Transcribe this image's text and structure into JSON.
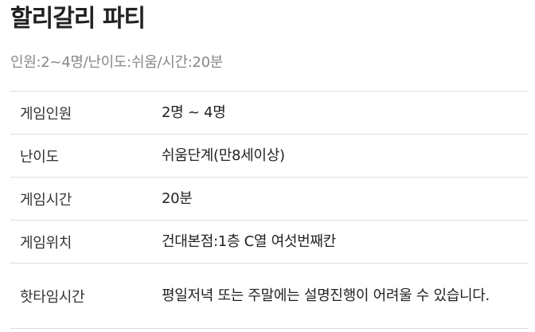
{
  "page": {
    "title": "할리갈리 파티",
    "summary": "인원:2~4명/난이도:쉬움/시간:20분"
  },
  "info_table": {
    "rows": [
      {
        "label": "게임인원",
        "value": "2명 ~ 4명"
      },
      {
        "label": "난이도",
        "value": "쉬움단계(만8세이상)"
      },
      {
        "label": "게임시간",
        "value": "20분"
      },
      {
        "label": "게임위치",
        "value": "건대본점:1층 C열 여섯번째칸"
      },
      {
        "label": "핫타임시간",
        "value": "평일저녁 또는 주말에는 설명진행이 어려울 수 있습니다."
      }
    ]
  }
}
